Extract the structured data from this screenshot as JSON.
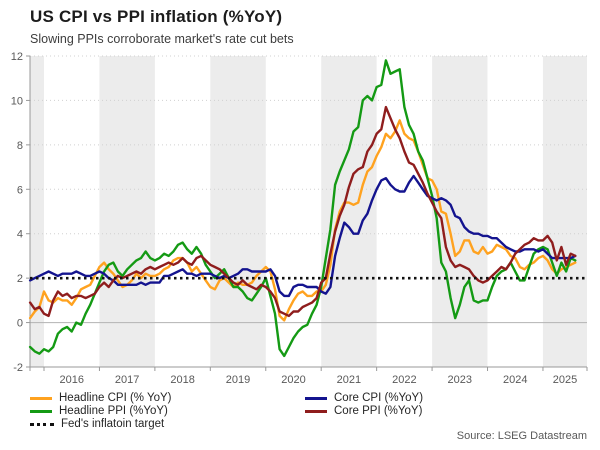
{
  "chart_data": {
    "type": "line",
    "title": "US CPI vs PPI inflation (%YoY)",
    "subtitle": "Slowing PPIs corroborate market's rate cut bets",
    "source": "Source: LSEG Datastream",
    "x_start": 2015.75,
    "x_step_months": 1,
    "x_ticks": [
      2016,
      2017,
      2018,
      2019,
      2020,
      2021,
      2022,
      2023,
      2024,
      2025
    ],
    "y_ticks": [
      -2,
      0,
      2,
      4,
      6,
      8,
      10,
      12
    ],
    "ylim": [
      -2,
      12
    ],
    "grid_values": [
      4,
      6,
      8,
      10,
      12
    ],
    "zero_line_color": "#b3b3b3",
    "grid_color": "#d0d0d0",
    "axis_color": "#999999",
    "tick_label_color": "#595959",
    "legend_position": "bottom-left-two-columns",
    "target_line": {
      "label": "Fed's inflatoin target",
      "value": 2,
      "color": "#111111",
      "style": "dotted"
    },
    "plot": {
      "band_color": "#ececec",
      "band_years": [
        2015,
        2017,
        2019,
        2021,
        2023,
        2025
      ]
    },
    "series": [
      {
        "name": "Headline CPI (% YoY)",
        "color": "#ffa21f",
        "values": [
          0.2,
          0.5,
          0.7,
          1.4,
          1.0,
          0.9,
          1.1,
          1.0,
          1.0,
          0.8,
          1.1,
          1.5,
          1.6,
          1.7,
          2.1,
          2.5,
          2.7,
          2.4,
          2.2,
          1.9,
          1.6,
          1.7,
          1.9,
          2.2,
          2.0,
          2.2,
          2.1,
          2.1,
          2.2,
          2.4,
          2.5,
          2.8,
          2.9,
          2.9,
          2.7,
          2.3,
          2.5,
          2.2,
          1.9,
          1.6,
          1.5,
          1.9,
          2.0,
          1.8,
          1.6,
          1.8,
          1.7,
          1.7,
          1.8,
          2.1,
          2.3,
          2.5,
          2.3,
          1.5,
          0.3,
          0.1,
          0.6,
          1.0,
          1.3,
          1.4,
          1.2,
          1.2,
          1.4,
          1.4,
          1.7,
          2.6,
          4.2,
          5.0,
          5.4,
          5.4,
          5.3,
          5.4,
          6.2,
          6.8,
          7.0,
          7.5,
          7.9,
          8.5,
          8.3,
          8.6,
          9.1,
          8.5,
          8.3,
          8.2,
          7.7,
          7.1,
          6.5,
          6.4,
          6.0,
          5.0,
          4.9,
          4.0,
          3.0,
          3.2,
          3.7,
          3.7,
          3.2,
          3.1,
          3.4,
          3.1,
          3.2,
          3.5,
          3.4,
          3.3,
          3.0,
          2.9,
          2.5,
          2.4,
          2.6,
          2.7,
          2.9,
          3.0,
          2.8,
          2.4,
          2.2,
          2.4,
          2.5,
          2.6,
          2.7
        ]
      },
      {
        "name": "Headline PPI (%YoY)",
        "color": "#149a14",
        "values": [
          -1.1,
          -1.3,
          -1.4,
          -1.2,
          -1.3,
          -1.1,
          -0.5,
          -0.3,
          -0.2,
          -0.4,
          0.0,
          -0.1,
          0.4,
          0.8,
          1.3,
          1.8,
          2.3,
          2.6,
          2.7,
          2.3,
          2.1,
          2.4,
          2.6,
          2.8,
          2.9,
          3.2,
          2.9,
          2.8,
          2.9,
          3.1,
          3.0,
          3.2,
          3.5,
          3.6,
          3.3,
          3.1,
          3.4,
          3.1,
          2.6,
          2.3,
          2.0,
          2.2,
          2.4,
          2.0,
          1.6,
          1.6,
          1.4,
          1.1,
          1.0,
          1.3,
          1.6,
          2.0,
          1.2,
          0.4,
          -1.2,
          -1.5,
          -1.1,
          -0.7,
          -0.4,
          -0.2,
          -0.1,
          0.4,
          0.8,
          1.6,
          2.9,
          4.2,
          6.2,
          6.8,
          7.3,
          7.8,
          8.6,
          8.8,
          10.0,
          10.2,
          10.0,
          10.6,
          10.7,
          11.8,
          11.2,
          11.3,
          11.4,
          9.7,
          8.9,
          8.5,
          7.7,
          7.3,
          6.5,
          5.7,
          4.7,
          2.7,
          2.3,
          1.1,
          0.2,
          0.8,
          1.6,
          1.9,
          1.0,
          0.9,
          1.0,
          1.0,
          1.6,
          2.1,
          2.3,
          2.4,
          2.7,
          2.3,
          1.9,
          1.9,
          2.5,
          3.1,
          3.3,
          3.4,
          3.3,
          2.7,
          2.1,
          2.7,
          2.3,
          2.9,
          2.8
        ]
      },
      {
        "name": "Core CPI (%YoY)",
        "color": "#14148f",
        "values": [
          1.9,
          2.0,
          2.1,
          2.2,
          2.3,
          2.2,
          2.1,
          2.2,
          2.2,
          2.2,
          2.3,
          2.2,
          2.1,
          2.1,
          2.2,
          2.3,
          2.2,
          2.0,
          1.9,
          1.7,
          1.7,
          1.7,
          1.7,
          1.7,
          1.8,
          1.7,
          1.8,
          1.8,
          1.8,
          2.1,
          2.1,
          2.2,
          2.3,
          2.4,
          2.2,
          2.2,
          2.1,
          2.2,
          2.2,
          2.2,
          2.1,
          2.0,
          2.1,
          2.0,
          2.1,
          2.2,
          2.4,
          2.4,
          2.3,
          2.3,
          2.3,
          2.3,
          2.4,
          2.1,
          1.4,
          1.2,
          1.2,
          1.6,
          1.7,
          1.7,
          1.6,
          1.6,
          1.6,
          1.4,
          1.3,
          1.6,
          3.0,
          3.8,
          4.5,
          4.3,
          4.0,
          4.0,
          4.6,
          4.9,
          5.5,
          6.0,
          6.4,
          6.5,
          6.2,
          6.0,
          5.9,
          5.9,
          6.3,
          6.6,
          6.3,
          6.0,
          5.7,
          5.6,
          5.5,
          5.6,
          5.5,
          5.3,
          4.8,
          4.7,
          4.3,
          4.1,
          4.0,
          4.0,
          3.9,
          3.9,
          3.8,
          3.8,
          3.6,
          3.4,
          3.3,
          3.2,
          3.2,
          3.3,
          3.3,
          3.3,
          3.2,
          3.3,
          3.1,
          2.9,
          2.9,
          2.9,
          2.9,
          2.9,
          3.0
        ]
      },
      {
        "name": "Core PPI (%YoY)",
        "color": "#8f1d1d",
        "values": [
          0.9,
          0.6,
          0.7,
          0.4,
          0.3,
          1.0,
          1.4,
          1.2,
          1.3,
          1.1,
          1.2,
          1.2,
          1.1,
          1.2,
          1.3,
          1.6,
          1.8,
          1.6,
          1.9,
          2.1,
          2.0,
          2.1,
          2.2,
          2.3,
          2.2,
          2.4,
          2.5,
          2.4,
          2.5,
          2.6,
          2.7,
          2.6,
          2.7,
          2.9,
          2.7,
          2.6,
          2.9,
          3.0,
          2.8,
          2.6,
          2.5,
          2.4,
          2.2,
          2.0,
          1.8,
          1.7,
          1.9,
          1.7,
          1.6,
          1.5,
          1.7,
          1.6,
          1.4,
          1.1,
          0.5,
          0.4,
          0.3,
          0.5,
          0.5,
          0.7,
          0.8,
          0.9,
          1.1,
          1.8,
          2.0,
          3.1,
          4.1,
          4.8,
          5.3,
          6.1,
          6.7,
          6.9,
          7.0,
          7.7,
          8.0,
          8.5,
          8.7,
          9.7,
          9.2,
          8.7,
          8.3,
          7.7,
          7.2,
          7.1,
          6.7,
          6.3,
          5.8,
          5.4,
          5.0,
          4.7,
          3.4,
          2.8,
          2.5,
          2.6,
          2.5,
          2.4,
          2.1,
          1.9,
          1.8,
          1.9,
          2.1,
          2.3,
          2.5,
          2.4,
          2.7,
          3.1,
          3.3,
          3.5,
          3.6,
          3.8,
          3.7,
          3.7,
          3.9,
          3.6,
          2.8,
          3.4,
          2.6,
          3.1,
          3.0
        ]
      }
    ]
  }
}
